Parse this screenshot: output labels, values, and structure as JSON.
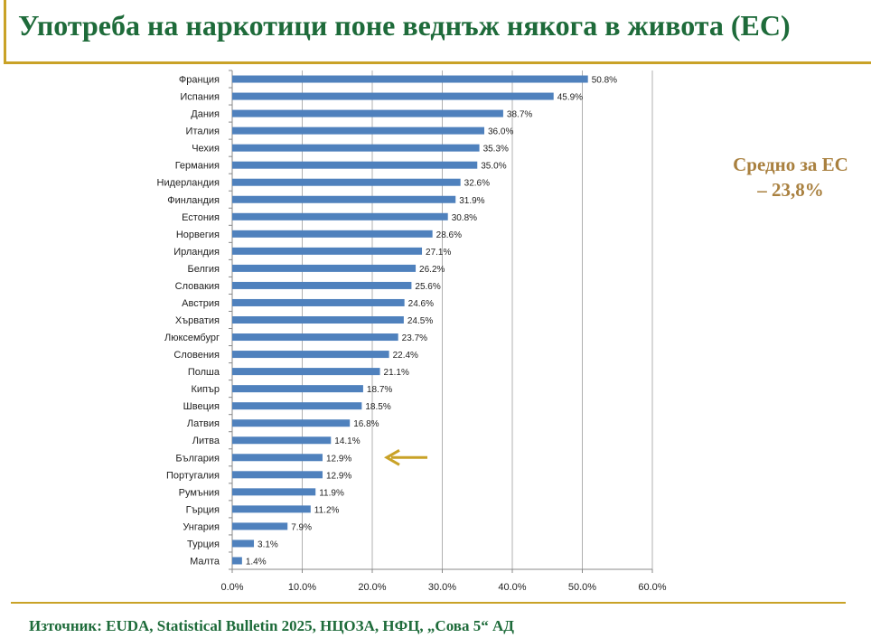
{
  "page": {
    "title": "Употреба на наркотици поне веднъж някога в живота (ЕС)",
    "avg_line1": "Средно за ЕС",
    "avg_line2": "– 23,8%",
    "source": "Източник: EUDA, Statistical Bulletin 2025, НЦОЗА, НФЦ, „Сова 5“ АД"
  },
  "colors": {
    "bar": "#4f81bd",
    "title": "#1e6b3a",
    "accent": "#c9a227",
    "arrow": "#c9a227",
    "avg_text": "#a9803f"
  },
  "chart_data": {
    "type": "bar",
    "orientation": "horizontal",
    "categories": [
      "Франция",
      "Испания",
      "Дания",
      "Италия",
      "Чехия",
      "Германия",
      "Нидерландия",
      "Финландия",
      "Естония",
      "Норвегия",
      "Ирландия",
      "Белгия",
      "Словакия",
      "Австрия",
      "Хърватия",
      "Люксембург",
      "Словения",
      "Полша",
      "Кипър",
      "Швеция",
      "Латвия",
      "Литва",
      "България",
      "Португалия",
      "Румъния",
      "Гърция",
      "Унгария",
      "Турция",
      "Малта"
    ],
    "values": [
      50.8,
      45.9,
      38.7,
      36.0,
      35.3,
      35.0,
      32.6,
      31.9,
      30.8,
      28.6,
      27.1,
      26.2,
      25.6,
      24.6,
      24.5,
      23.7,
      22.4,
      21.1,
      18.7,
      18.5,
      16.8,
      14.1,
      12.9,
      12.9,
      11.9,
      11.2,
      7.9,
      3.1,
      1.4
    ],
    "value_labels": [
      "50.8%",
      "45.9%",
      "38.7%",
      "36.0%",
      "35.3%",
      "35.0%",
      "32.6%",
      "31.9%",
      "30.8%",
      "28.6%",
      "27.1%",
      "26.2%",
      "25.6%",
      "24.6%",
      "24.5%",
      "23.7%",
      "22.4%",
      "21.1%",
      "18.7%",
      "18.5%",
      "16.8%",
      "14.1%",
      "12.9%",
      "12.9%",
      "11.9%",
      "11.2%",
      "7.9%",
      "3.1%",
      "1.4%"
    ],
    "xlim": [
      0,
      60
    ],
    "x_ticks": [
      "0.0%",
      "10.0%",
      "20.0%",
      "30.0%",
      "40.0%",
      "50.0%",
      "60.0%"
    ],
    "grid": true,
    "highlight_category": "България",
    "highlight_marker": "arrow-left"
  }
}
